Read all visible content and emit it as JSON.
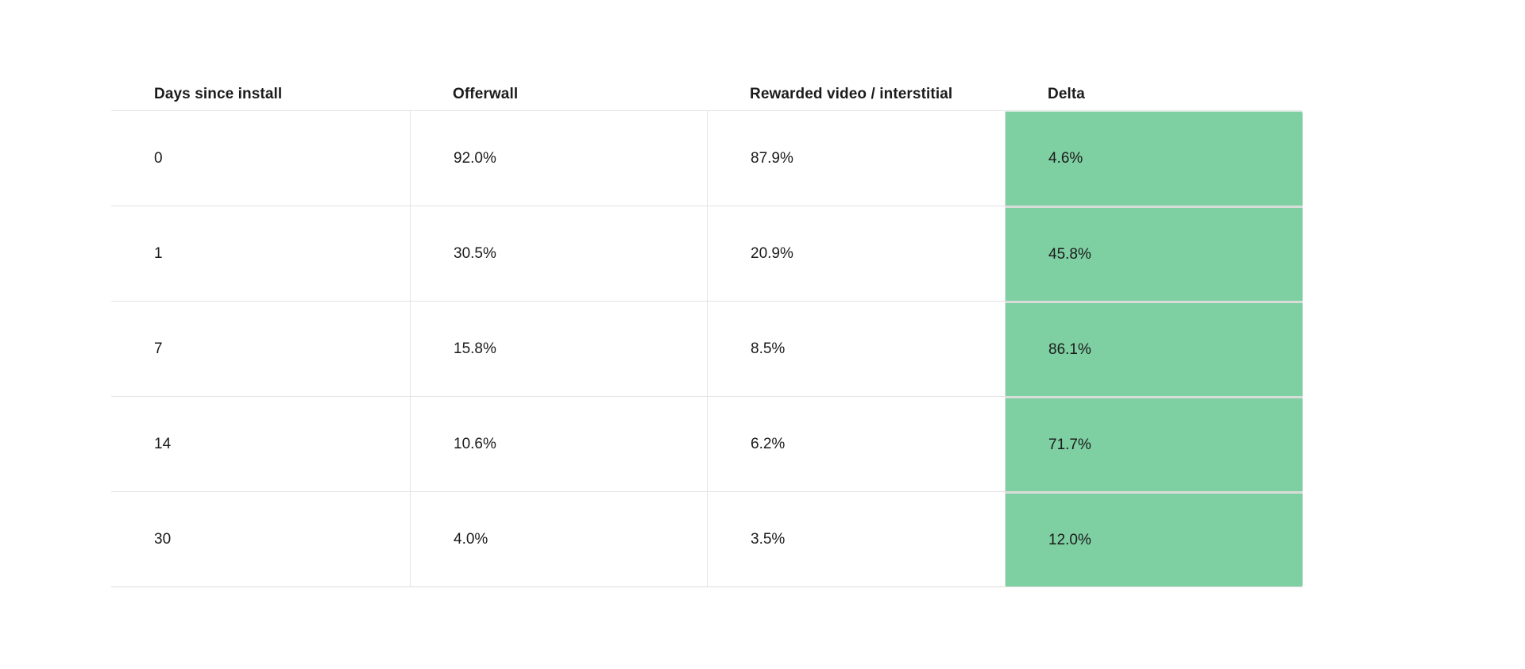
{
  "table": {
    "columns": [
      {
        "id": "days",
        "label": "Days since install"
      },
      {
        "id": "offerwall",
        "label": "Offerwall"
      },
      {
        "id": "rewarded",
        "label": "Rewarded video / interstitial"
      },
      {
        "id": "delta",
        "label": "Delta"
      }
    ],
    "rows": [
      {
        "days": "0",
        "offerwall": "92.0%",
        "rewarded": "87.9%",
        "delta": "4.6%"
      },
      {
        "days": "1",
        "offerwall": "30.5%",
        "rewarded": "20.9%",
        "delta": "45.8%"
      },
      {
        "days": "7",
        "offerwall": "15.8%",
        "rewarded": "8.5%",
        "delta": "86.1%"
      },
      {
        "days": "14",
        "offerwall": "10.6%",
        "rewarded": "6.2%",
        "delta": "71.7%"
      },
      {
        "days": "30",
        "offerwall": "4.0%",
        "rewarded": "3.5%",
        "delta": "12.0%"
      }
    ],
    "colors": {
      "delta_highlight": "#7ecfa2",
      "row_border": "#e3e3e3",
      "delta_gap": "#d9ddd9",
      "text": "#1b1b1b",
      "background": "#ffffff"
    }
  },
  "chart_data": {
    "type": "table",
    "title": "",
    "columns": [
      "Days since install",
      "Offerwall",
      "Rewarded video / interstitial",
      "Delta"
    ],
    "rows": [
      [
        "0",
        "92.0%",
        "87.9%",
        "4.6%"
      ],
      [
        "1",
        "30.5%",
        "20.9%",
        "45.8%"
      ],
      [
        "7",
        "15.8%",
        "8.5%",
        "86.1%"
      ],
      [
        "14",
        "10.6%",
        "6.2%",
        "71.7%"
      ],
      [
        "30",
        "4.0%",
        "3.5%",
        "12.0%"
      ]
    ],
    "highlighted_column": "Delta",
    "highlight_color": "#7ecfa2"
  }
}
